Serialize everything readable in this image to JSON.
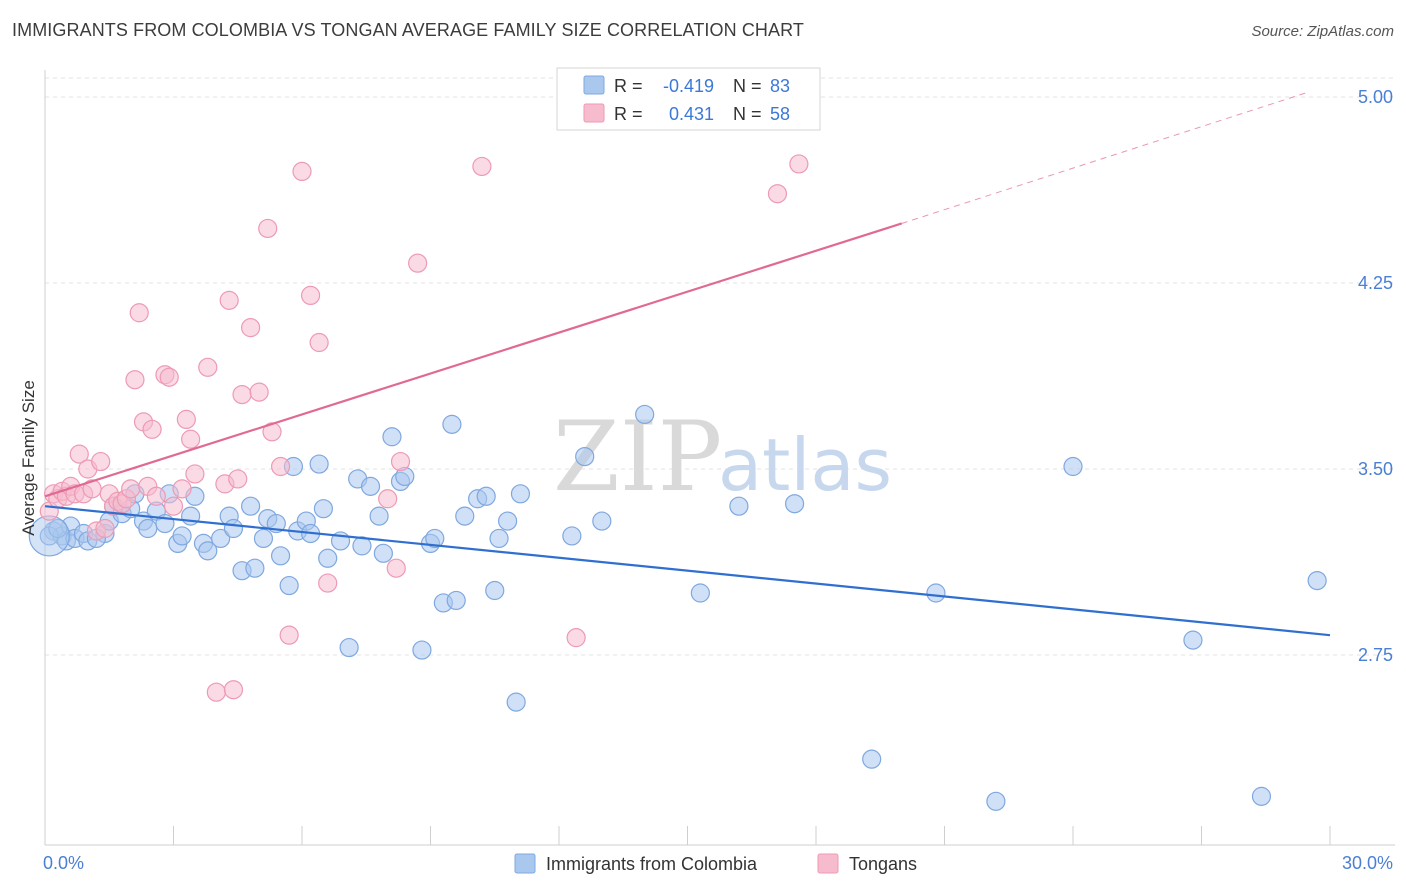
{
  "title": "IMMIGRANTS FROM COLOMBIA VS TONGAN AVERAGE FAMILY SIZE CORRELATION CHART",
  "source": "Source: ZipAtlas.com",
  "watermark": {
    "zip": "ZIP",
    "atlas": "atlas"
  },
  "colors": {
    "blue_fill": "#aac7ee",
    "blue_stroke": "#7fa8e0",
    "blue_line": "#2f6fd0",
    "pink_fill": "#f6bccd",
    "pink_stroke": "#ee9ab4",
    "pink_line": "#e06a93",
    "grid": "#e3e3e3",
    "tick_text": "#4a7fd4"
  },
  "legend": {
    "series1": {
      "r_label": "R =",
      "r_value": "-0.419",
      "n_label": "N =",
      "n_value": "83"
    },
    "series2": {
      "r_label": "R =",
      "r_value": "0.431",
      "n_label": "N =",
      "n_value": "58"
    }
  },
  "bottom_legend": {
    "series1": "Immigrants from Colombia",
    "series2": "Tongans"
  },
  "chart_data": {
    "type": "scatter",
    "title": "IMMIGRANTS FROM COLOMBIA VS TONGAN AVERAGE FAMILY SIZE CORRELATION CHART",
    "xlabel": "",
    "ylabel": "Average Family Size",
    "xlim": [
      0,
      30
    ],
    "ylim": [
      2.0,
      5.1
    ],
    "x_tick_labels": [
      "0.0%",
      "30.0%"
    ],
    "y_ticks": [
      2.75,
      3.5,
      4.25,
      5.0
    ],
    "y_tick_labels": [
      "2.75",
      "3.50",
      "4.25",
      "5.00"
    ],
    "grid": true,
    "series": [
      {
        "name": "Immigrants from Colombia",
        "color": "#aac7ee",
        "trend": {
          "x0": 0,
          "y0": 3.35,
          "x1": 30,
          "y1": 2.83
        },
        "points": [
          [
            0.2,
            3.25
          ],
          [
            0.4,
            3.23
          ],
          [
            0.5,
            3.21
          ],
          [
            0.6,
            3.27
          ],
          [
            0.7,
            3.22
          ],
          [
            0.9,
            3.24
          ],
          [
            1.0,
            3.21
          ],
          [
            1.4,
            3.24
          ],
          [
            1.5,
            3.29
          ],
          [
            1.6,
            3.35
          ],
          [
            1.8,
            3.32
          ],
          [
            2.0,
            3.34
          ],
          [
            2.1,
            3.4
          ],
          [
            2.3,
            3.29
          ],
          [
            2.4,
            3.26
          ],
          [
            2.6,
            3.33
          ],
          [
            2.8,
            3.28
          ],
          [
            2.9,
            3.4
          ],
          [
            3.1,
            3.2
          ],
          [
            3.2,
            3.23
          ],
          [
            3.4,
            3.31
          ],
          [
            3.5,
            3.39
          ],
          [
            3.7,
            3.2
          ],
          [
            3.8,
            3.17
          ],
          [
            4.1,
            3.22
          ],
          [
            4.3,
            3.31
          ],
          [
            4.4,
            3.26
          ],
          [
            4.6,
            3.09
          ],
          [
            4.8,
            3.35
          ],
          [
            4.9,
            3.1
          ],
          [
            5.1,
            3.22
          ],
          [
            5.2,
            3.3
          ],
          [
            5.4,
            3.28
          ],
          [
            5.5,
            3.15
          ],
          [
            5.7,
            3.03
          ],
          [
            5.8,
            3.51
          ],
          [
            5.9,
            3.25
          ],
          [
            6.1,
            3.29
          ],
          [
            6.2,
            3.24
          ],
          [
            6.4,
            3.52
          ],
          [
            6.5,
            3.34
          ],
          [
            6.6,
            3.14
          ],
          [
            6.9,
            3.21
          ],
          [
            7.1,
            2.78
          ],
          [
            7.3,
            3.46
          ],
          [
            7.4,
            3.19
          ],
          [
            7.6,
            3.43
          ],
          [
            7.8,
            3.31
          ],
          [
            7.9,
            3.16
          ],
          [
            8.1,
            3.63
          ],
          [
            8.3,
            3.45
          ],
          [
            8.4,
            3.47
          ],
          [
            8.8,
            2.77
          ],
          [
            9.0,
            3.2
          ],
          [
            9.1,
            3.22
          ],
          [
            9.3,
            2.96
          ],
          [
            9.5,
            3.68
          ],
          [
            9.6,
            2.97
          ],
          [
            9.8,
            3.31
          ],
          [
            10.1,
            3.38
          ],
          [
            10.3,
            3.39
          ],
          [
            10.5,
            3.01
          ],
          [
            10.6,
            3.22
          ],
          [
            10.8,
            3.29
          ],
          [
            11.0,
            2.56
          ],
          [
            11.1,
            3.4
          ],
          [
            12.3,
            3.23
          ],
          [
            12.6,
            3.55
          ],
          [
            13.0,
            3.29
          ],
          [
            14.0,
            3.72
          ],
          [
            15.3,
            3.0
          ],
          [
            16.2,
            3.35
          ],
          [
            17.5,
            3.36
          ],
          [
            19.3,
            2.33
          ],
          [
            20.8,
            3.0
          ],
          [
            22.2,
            2.16
          ],
          [
            24.0,
            3.51
          ],
          [
            26.8,
            2.81
          ],
          [
            28.4,
            2.18
          ],
          [
            29.7,
            3.05
          ],
          [
            0.1,
            3.23
          ],
          [
            0.3,
            3.26
          ],
          [
            1.2,
            3.22
          ]
        ]
      },
      {
        "name": "Tongans",
        "color": "#f6bccd",
        "trend": {
          "x0": 0,
          "y0": 3.39,
          "x1": 20,
          "y1": 4.49,
          "dash_x1": 29.5,
          "dash_y1": 5.02
        },
        "points": [
          [
            0.1,
            3.33
          ],
          [
            0.2,
            3.4
          ],
          [
            0.3,
            3.38
          ],
          [
            0.4,
            3.41
          ],
          [
            0.5,
            3.39
          ],
          [
            0.6,
            3.43
          ],
          [
            0.7,
            3.4
          ],
          [
            0.8,
            3.56
          ],
          [
            0.9,
            3.4
          ],
          [
            1.0,
            3.5
          ],
          [
            1.1,
            3.42
          ],
          [
            1.2,
            3.25
          ],
          [
            1.3,
            3.53
          ],
          [
            1.4,
            3.26
          ],
          [
            1.5,
            3.4
          ],
          [
            1.6,
            3.35
          ],
          [
            1.7,
            3.37
          ],
          [
            1.8,
            3.36
          ],
          [
            1.9,
            3.38
          ],
          [
            2.0,
            3.42
          ],
          [
            2.1,
            3.86
          ],
          [
            2.2,
            4.13
          ],
          [
            2.3,
            3.69
          ],
          [
            2.4,
            3.43
          ],
          [
            2.5,
            3.66
          ],
          [
            2.6,
            3.39
          ],
          [
            2.8,
            3.88
          ],
          [
            2.9,
            3.87
          ],
          [
            3.0,
            3.35
          ],
          [
            3.2,
            3.42
          ],
          [
            3.3,
            3.7
          ],
          [
            3.4,
            3.62
          ],
          [
            3.5,
            3.48
          ],
          [
            3.8,
            3.91
          ],
          [
            4.0,
            2.6
          ],
          [
            4.2,
            3.44
          ],
          [
            4.3,
            4.18
          ],
          [
            4.4,
            2.61
          ],
          [
            4.5,
            3.46
          ],
          [
            4.6,
            3.8
          ],
          [
            4.8,
            4.07
          ],
          [
            5.0,
            3.81
          ],
          [
            5.2,
            4.47
          ],
          [
            5.3,
            3.65
          ],
          [
            5.5,
            3.51
          ],
          [
            5.7,
            2.83
          ],
          [
            6.0,
            4.7
          ],
          [
            6.2,
            4.2
          ],
          [
            6.4,
            4.01
          ],
          [
            6.6,
            3.04
          ],
          [
            8.0,
            3.38
          ],
          [
            8.2,
            3.1
          ],
          [
            8.3,
            3.53
          ],
          [
            8.7,
            4.33
          ],
          [
            10.2,
            4.72
          ],
          [
            12.4,
            2.82
          ],
          [
            17.1,
            4.61
          ],
          [
            17.6,
            4.73
          ]
        ]
      }
    ]
  }
}
